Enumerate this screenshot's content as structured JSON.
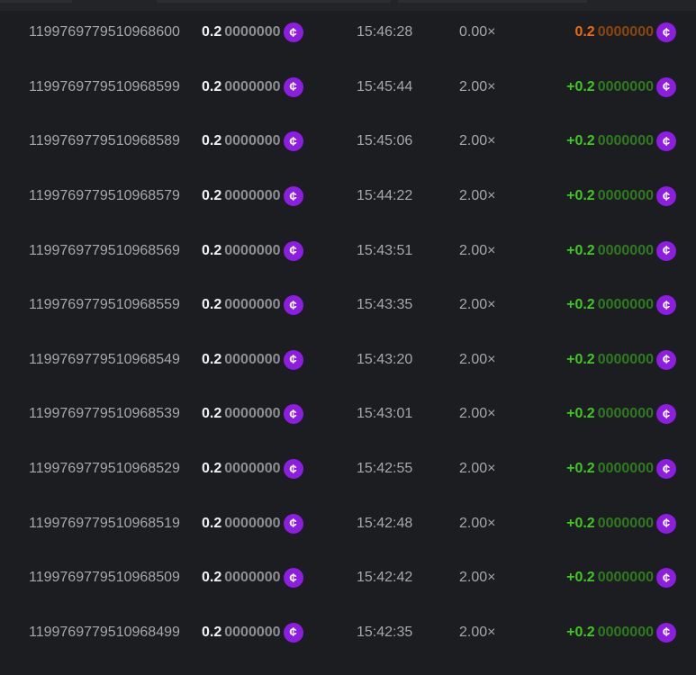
{
  "colors": {
    "win_hi": "#3fc81e",
    "win_lo": "#2f7a1f",
    "loss_hi": "#f06a0a",
    "loss_lo": "#8a4610",
    "coin": "#8d1de0"
  },
  "currency_icon": "cent-coin-icon",
  "rows": [
    {
      "id": "1199769779510968600",
      "bet_hi": "0.2",
      "bet_lo": "0000000",
      "time": "15:46:28",
      "multiplier": "0.00×",
      "payout_hi": "0.2",
      "payout_lo": "0000000",
      "result": "loss"
    },
    {
      "id": "1199769779510968599",
      "bet_hi": "0.2",
      "bet_lo": "0000000",
      "time": "15:45:44",
      "multiplier": "2.00×",
      "payout_hi": "+0.2",
      "payout_lo": "0000000",
      "result": "win"
    },
    {
      "id": "1199769779510968589",
      "bet_hi": "0.2",
      "bet_lo": "0000000",
      "time": "15:45:06",
      "multiplier": "2.00×",
      "payout_hi": "+0.2",
      "payout_lo": "0000000",
      "result": "win"
    },
    {
      "id": "1199769779510968579",
      "bet_hi": "0.2",
      "bet_lo": "0000000",
      "time": "15:44:22",
      "multiplier": "2.00×",
      "payout_hi": "+0.2",
      "payout_lo": "0000000",
      "result": "win"
    },
    {
      "id": "1199769779510968569",
      "bet_hi": "0.2",
      "bet_lo": "0000000",
      "time": "15:43:51",
      "multiplier": "2.00×",
      "payout_hi": "+0.2",
      "payout_lo": "0000000",
      "result": "win"
    },
    {
      "id": "1199769779510968559",
      "bet_hi": "0.2",
      "bet_lo": "0000000",
      "time": "15:43:35",
      "multiplier": "2.00×",
      "payout_hi": "+0.2",
      "payout_lo": "0000000",
      "result": "win"
    },
    {
      "id": "1199769779510968549",
      "bet_hi": "0.2",
      "bet_lo": "0000000",
      "time": "15:43:20",
      "multiplier": "2.00×",
      "payout_hi": "+0.2",
      "payout_lo": "0000000",
      "result": "win"
    },
    {
      "id": "1199769779510968539",
      "bet_hi": "0.2",
      "bet_lo": "0000000",
      "time": "15:43:01",
      "multiplier": "2.00×",
      "payout_hi": "+0.2",
      "payout_lo": "0000000",
      "result": "win"
    },
    {
      "id": "1199769779510968529",
      "bet_hi": "0.2",
      "bet_lo": "0000000",
      "time": "15:42:55",
      "multiplier": "2.00×",
      "payout_hi": "+0.2",
      "payout_lo": "0000000",
      "result": "win"
    },
    {
      "id": "1199769779510968519",
      "bet_hi": "0.2",
      "bet_lo": "0000000",
      "time": "15:42:48",
      "multiplier": "2.00×",
      "payout_hi": "+0.2",
      "payout_lo": "0000000",
      "result": "win"
    },
    {
      "id": "1199769779510968509",
      "bet_hi": "0.2",
      "bet_lo": "0000000",
      "time": "15:42:42",
      "multiplier": "2.00×",
      "payout_hi": "+0.2",
      "payout_lo": "0000000",
      "result": "win"
    },
    {
      "id": "1199769779510968499",
      "bet_hi": "0.2",
      "bet_lo": "0000000",
      "time": "15:42:35",
      "multiplier": "2.00×",
      "payout_hi": "+0.2",
      "payout_lo": "0000000",
      "result": "win"
    }
  ]
}
